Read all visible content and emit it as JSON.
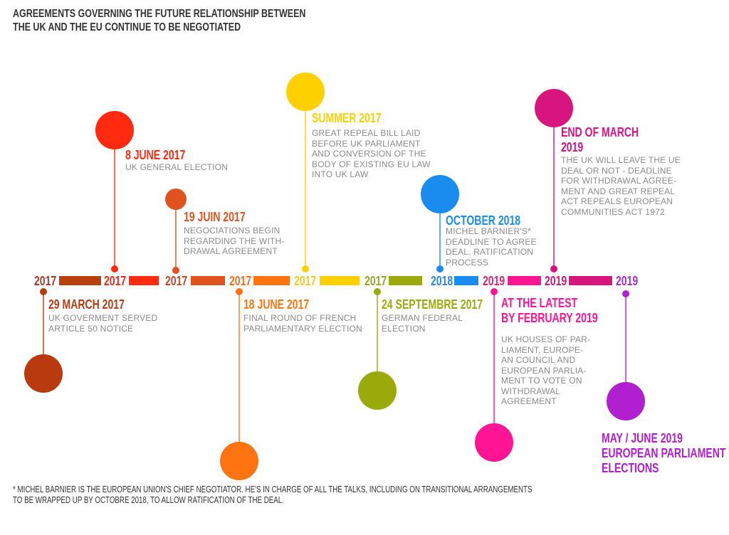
{
  "header": {
    "line1": "AGREEMENTS GOVERNING THE FUTURE RELATIONSHIP BETWEEN",
    "line2": "THE UK AND THE EU CONTINUE TO BE NEGOTIATED"
  },
  "footnote": {
    "line1": "* MICHEL BARNIER IS THE EUROPEAN UNION'S CHIEF NEGOTIATOR. HE'S IN CHARGE OF ALL THE TALKS, INCLUDING ON TRANSITIONAL ARRANGEMENTS",
    "line2": "TO BE WRAPPED UP BY OCTOBRE 2018, TO ALLOW RATIFICATION OF THE DEAL."
  },
  "timeline": {
    "years": [
      {
        "label": "2017",
        "color": "#a53a2a"
      },
      {
        "label": "2017",
        "color": "#e8281a"
      },
      {
        "label": "2017",
        "color": "#c8452a"
      },
      {
        "label": "2017",
        "color": "#f07020"
      },
      {
        "label": "2017",
        "color": "#f0c820"
      },
      {
        "label": "2017",
        "color": "#94a628"
      },
      {
        "label": "2018",
        "color": "#2a86e0"
      },
      {
        "label": "2019",
        "color": "#e0246a"
      },
      {
        "label": "2019",
        "color": "#c81a78"
      },
      {
        "label": "2019",
        "color": "#a030c8"
      }
    ],
    "segments": [
      "#b8400c",
      "#ff2a10",
      "#e0531f",
      "#ff7310",
      "#ffd000",
      "#9aaa0a",
      "#1a8cf0",
      "#ff1493",
      "#d8157f"
    ]
  },
  "events": [
    {
      "title": [
        "29 MARCH 2017"
      ],
      "desc": "UK GOVERMENT SERVED\nARTICLE 50 NOTICE",
      "color": "#b83a0e"
    },
    {
      "title": [
        "8 JUNE 2017"
      ],
      "desc": "UK GENERAL ELECTION",
      "color": "#ff2a10"
    },
    {
      "title": [
        "19 JUIN 2017"
      ],
      "desc": "NEGOCIATIONS BEGIN\nREGARDING THE WITH-\nDRAWAL AGREEMENT",
      "color": "#e0531f"
    },
    {
      "title": [
        "18 JUNE 2017"
      ],
      "desc": "FINAL ROUND OF FRENCH\nPARLIAMENTARY ELECTION",
      "color": "#ff7310"
    },
    {
      "title": [
        "SUMMER 2017"
      ],
      "desc": "GREAT REPEAL BILL LAID\nBEFORE UK PARLIAMENT\nAND CONVERSION OF THE\nBODY OF EXISTING EU LAW\nINTO UK LAW",
      "color": "#ffd000"
    },
    {
      "title": [
        "24 SEPTEMBRE 2017"
      ],
      "desc": "GERMAN FEDERAL\nELECTION",
      "color": "#9aaa0a"
    },
    {
      "title": [
        "OCTOBER 2018"
      ],
      "desc": "MICHEL BARNIER'S*\nDEADLINE TO AGREE\nDEAL. RATIFICATION\nPROCESS",
      "color": "#1a8cf0"
    },
    {
      "title": [
        "AT THE LATEST",
        "BY FEBRUARY 2019"
      ],
      "desc": "UK HOUSES OF PAR-\nLIAMENT, EUROPE-\nAN COUNCIL AND\nEUROPEAN PARLIA-\nMENT TO VOTE ON\nWITHDRAWAL\nAGREEMENT",
      "color": "#ff1493"
    },
    {
      "title": [
        "END OF MARCH",
        "2019"
      ],
      "desc": "THE UK WILL LEAVE THE UE\nDEAL OR NOT - DEADLINE\nFOR WITHDRAWAL AGREE-\nMENT AND GREAT REPEAL\nACT REPEALS EUROPEAN\nCOMMUNITIES ACT 1972",
      "color": "#d8157f"
    },
    {
      "title": [
        "MAY / JUNE 2019",
        "EUROPEAN PARLIAMENT",
        "ELECTIONS"
      ],
      "desc": "",
      "color": "#b020d0"
    }
  ]
}
